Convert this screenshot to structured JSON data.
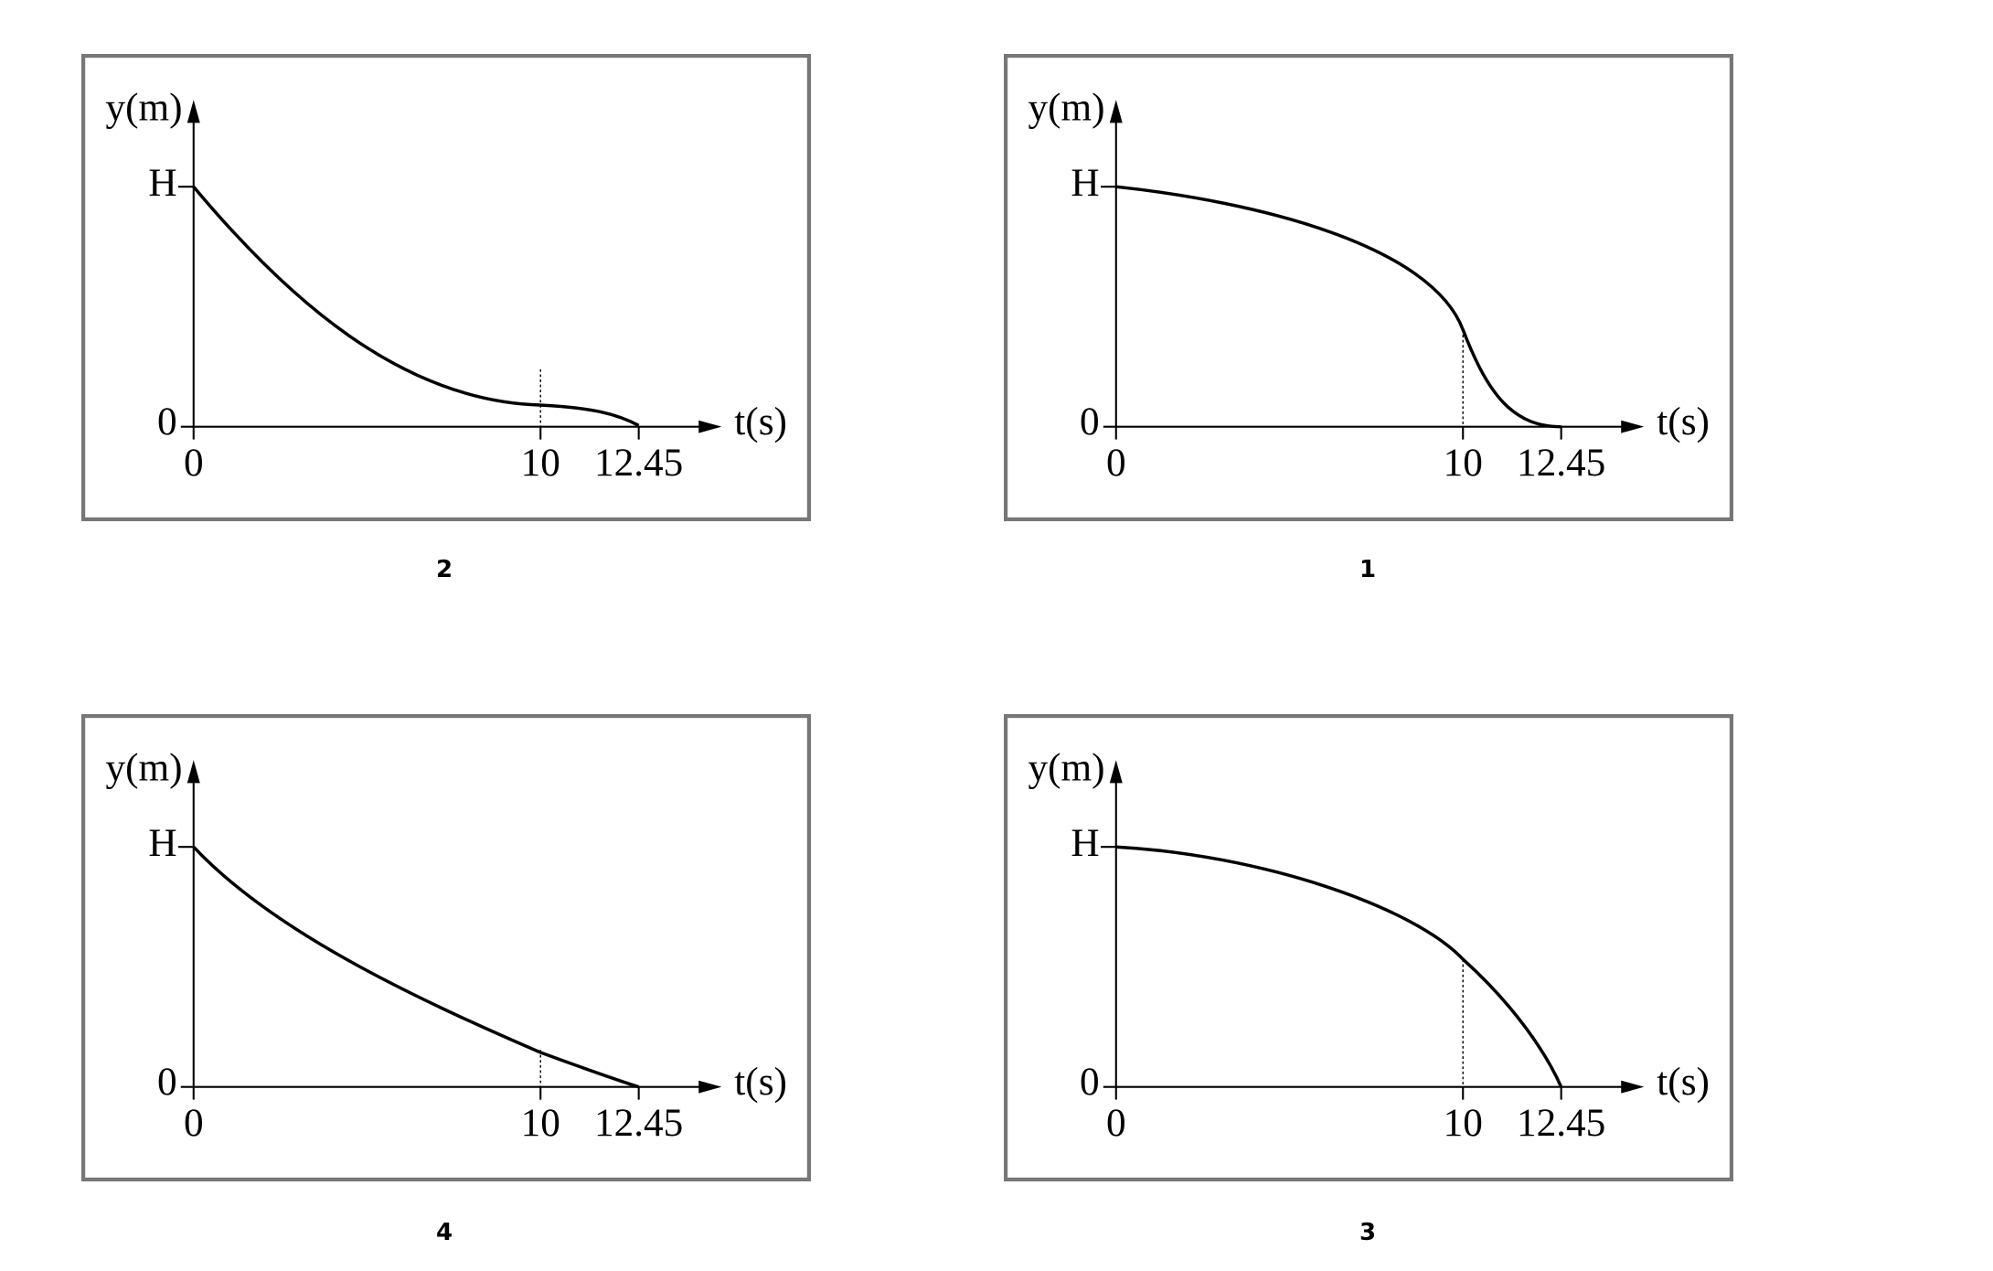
{
  "panels": [
    {
      "label": "2",
      "y_label": "y(m)",
      "x_label": "t(s)",
      "y_ticks": [
        "H",
        "0"
      ],
      "x_ticks": [
        "0",
        "10",
        "12.45"
      ]
    },
    {
      "label": "1",
      "y_label": "y(m)",
      "x_label": "t(s)",
      "y_ticks": [
        "H",
        "0"
      ],
      "x_ticks": [
        "0",
        "10",
        "12.45"
      ]
    },
    {
      "label": "4",
      "y_label": "y(m)",
      "x_label": "t(s)",
      "y_ticks": [
        "H",
        "0"
      ],
      "x_ticks": [
        "0",
        "10",
        "12.45"
      ]
    },
    {
      "label": "3",
      "y_label": "y(m)",
      "x_label": "t(s)",
      "y_ticks": [
        "H",
        "0"
      ],
      "x_ticks": [
        "0",
        "10",
        "12.45"
      ]
    }
  ]
}
